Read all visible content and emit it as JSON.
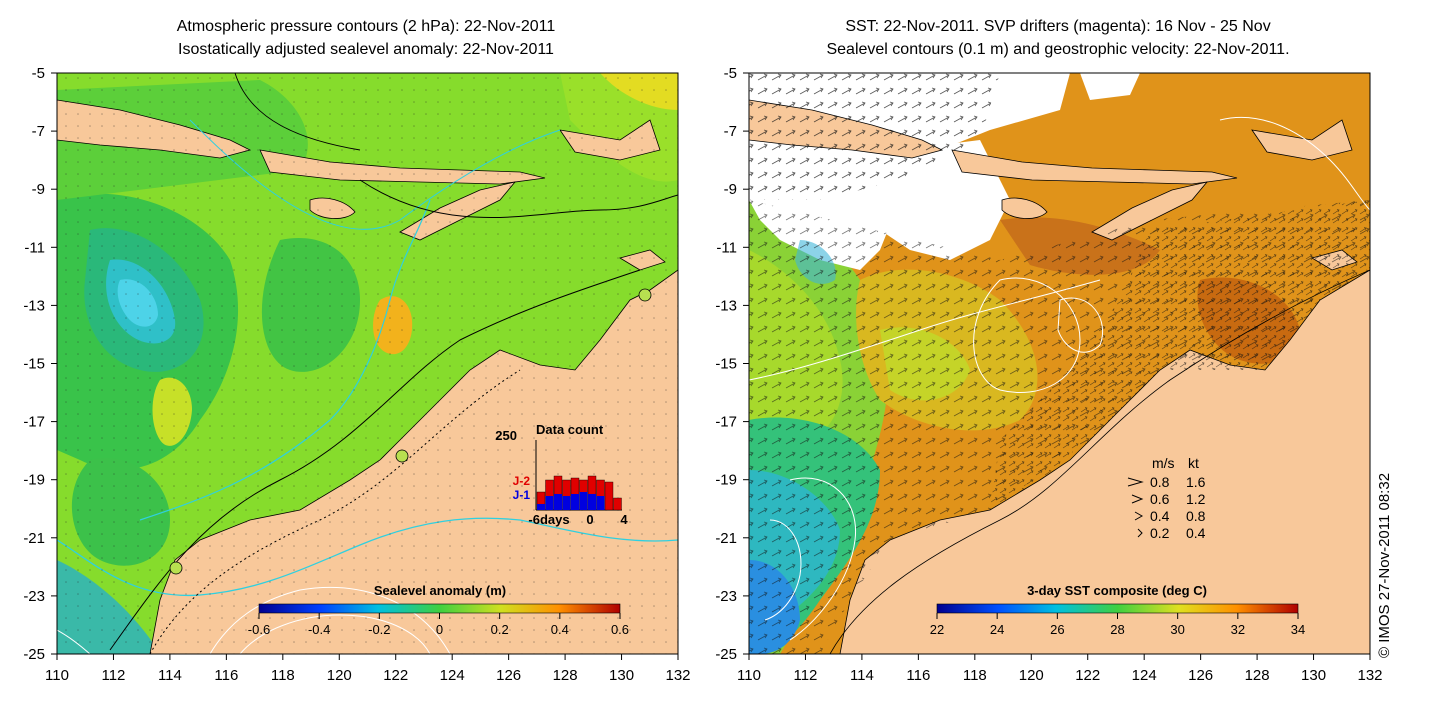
{
  "left_panel": {
    "title_line1": "Atmospheric pressure contours (2 hPa): 22-Nov-2011",
    "title_line2": "Isostatically adjusted sealevel anomaly: 22-Nov-2011",
    "colorbar": {
      "label": "Sealevel anomaly (m)",
      "ticks": [
        "-0.6",
        "-0.4",
        "-0.2",
        "0",
        "0.2",
        "0.4",
        "0.6"
      ]
    },
    "data_count": {
      "title": "Data count",
      "ymax_label": "250",
      "series_red": "J-2",
      "series_blue": "J-1",
      "xlabel_left": "-6days",
      "xlabel_mid": "0",
      "xlabel_right": "4"
    }
  },
  "right_panel": {
    "title_line1": "SST: 22-Nov-2011. SVP drifters (magenta): 16 Nov - 25 Nov",
    "title_line2": "Sealevel contours (0.1 m) and geostrophic velocity: 22-Nov-2011.",
    "colorbar": {
      "label": "3-day SST composite (deg C)",
      "ticks": [
        "22",
        "24",
        "26",
        "28",
        "30",
        "32",
        "34"
      ]
    },
    "speed_legend": {
      "header_ms": "m/s",
      "header_kt": "kt",
      "rows": [
        {
          "ms": "0.8",
          "kt": "1.6"
        },
        {
          "ms": "0.6",
          "kt": "1.2"
        },
        {
          "ms": "0.4",
          "kt": "0.8"
        },
        {
          "ms": "0.2",
          "kt": "0.4"
        }
      ]
    }
  },
  "axes": {
    "lat_ticks": [
      "-5",
      "-7",
      "-9",
      "-11",
      "-13",
      "-15",
      "-17",
      "-19",
      "-21",
      "-23",
      "-25"
    ],
    "lon_ticks": [
      "110",
      "112",
      "114",
      "116",
      "118",
      "120",
      "122",
      "124",
      "126",
      "128",
      "130",
      "132"
    ]
  },
  "credit": "© IMOS 27-Nov-2011 08:32",
  "colors": {
    "land": "#f8c89a",
    "sla_bg": "#7ed321",
    "sst_bg": "#e08a16"
  }
}
